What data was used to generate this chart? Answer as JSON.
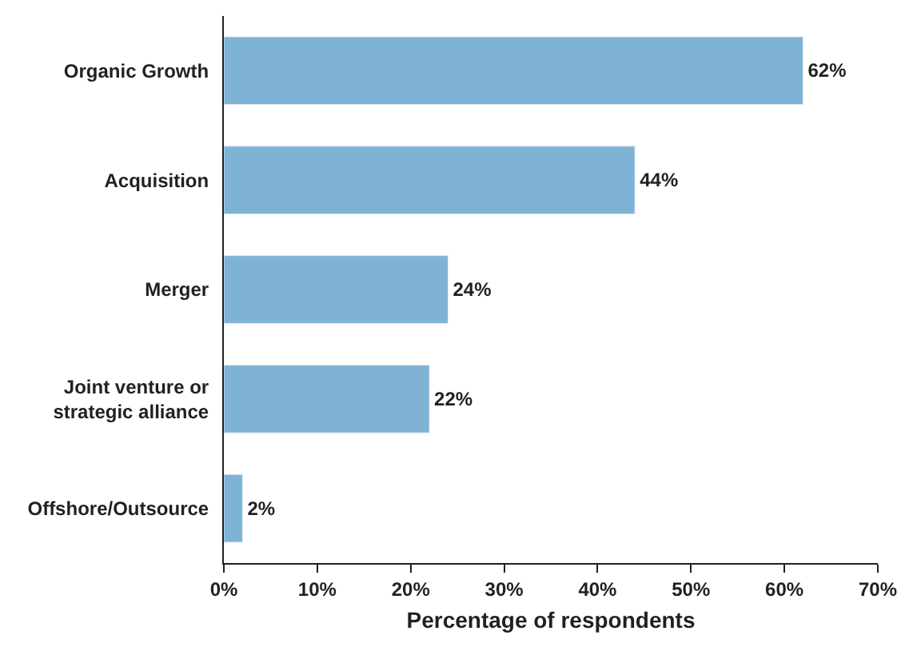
{
  "chart_data": {
    "type": "bar",
    "orientation": "horizontal",
    "xlabel": "Percentage of respondents",
    "categories": [
      "Organic Growth",
      "Acquisition",
      "Merger",
      "Joint venture or\nstrategic alliance",
      "Offshore/Outsource"
    ],
    "values": [
      62,
      44,
      24,
      22,
      2
    ],
    "value_labels": [
      "62%",
      "44%",
      "24%",
      "22%",
      "2%"
    ],
    "color": "#7fb3d5",
    "xlim": [
      0,
      70
    ],
    "xticks": [
      {
        "value": 0,
        "label": "0%"
      },
      {
        "value": 10,
        "label": "10%"
      },
      {
        "value": 20,
        "label": "20%"
      },
      {
        "value": 30,
        "label": "30%"
      },
      {
        "value": 40,
        "label": "40%"
      },
      {
        "value": 50,
        "label": "50%"
      },
      {
        "value": 60,
        "label": "60%"
      },
      {
        "value": 70,
        "label": "70%"
      }
    ],
    "legend": false
  }
}
